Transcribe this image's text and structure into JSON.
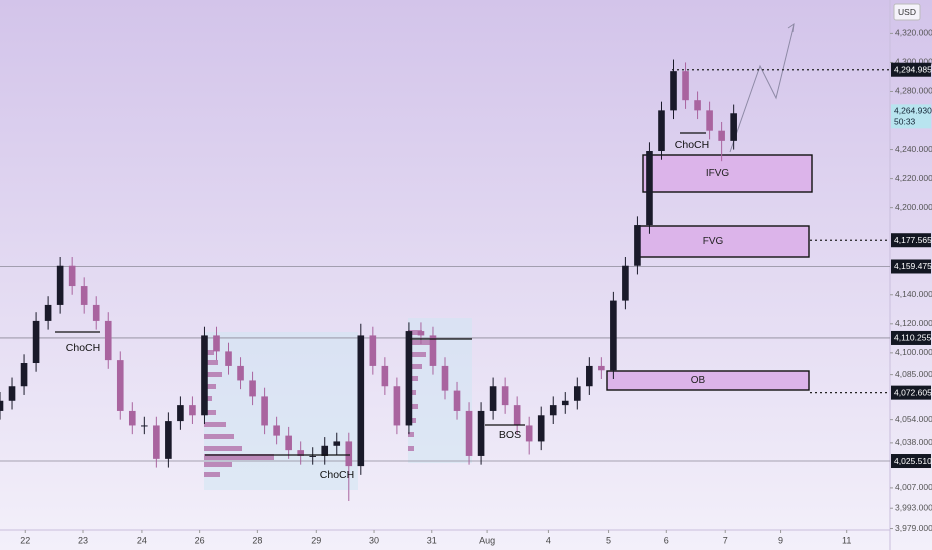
{
  "chart_data": {
    "type": "candlestick",
    "currency": "USD",
    "up_color": "#1a1a2a",
    "down_color": "#a9649f",
    "grid": false,
    "xlim": [
      0,
      74
    ],
    "ylim": [
      3978,
      4343
    ],
    "xticks": [
      {
        "value": 2.1,
        "label": "22"
      },
      {
        "value": 6.9,
        "label": "23"
      },
      {
        "value": 11.8,
        "label": "24"
      },
      {
        "value": 16.6,
        "label": "26"
      },
      {
        "value": 21.4,
        "label": "28"
      },
      {
        "value": 26.3,
        "label": "29"
      },
      {
        "value": 31.1,
        "label": "30"
      },
      {
        "value": 35.9,
        "label": "31"
      },
      {
        "value": 40.5,
        "label": "Aug"
      },
      {
        "value": 45.6,
        "label": "4"
      },
      {
        "value": 50.6,
        "label": "5"
      },
      {
        "value": 55.4,
        "label": "6"
      },
      {
        "value": 60.3,
        "label": "7"
      },
      {
        "value": 64.9,
        "label": "9"
      },
      {
        "value": 70.4,
        "label": "11"
      }
    ],
    "yticks": [
      {
        "value": 4320,
        "label": "4,320.000"
      },
      {
        "value": 4300,
        "label": "4,300.000"
      },
      {
        "value": 4280,
        "label": "4,280.000"
      },
      {
        "value": 4240,
        "label": "4,240.000"
      },
      {
        "value": 4220,
        "label": "4,220.000"
      },
      {
        "value": 4200,
        "label": "4,200.000"
      },
      {
        "value": 4140,
        "label": "4,140.000"
      },
      {
        "value": 4120,
        "label": "4,120.000"
      },
      {
        "value": 4100,
        "label": "4,100.000"
      },
      {
        "value": 4085,
        "label": "4,085.000"
      },
      {
        "value": 4054,
        "label": "4,054.000"
      },
      {
        "value": 4038,
        "label": "4,038.000"
      },
      {
        "value": 4007,
        "label": "4,007.000"
      },
      {
        "value": 3993,
        "label": "3,993.000"
      },
      {
        "value": 3979,
        "label": "3,979.000"
      }
    ],
    "open": [
      4060,
      4067,
      4077,
      4093,
      4122,
      4133,
      4160,
      4146,
      4133,
      4122,
      4095,
      4060,
      4050,
      4050,
      4027,
      4053,
      4064,
      4057,
      4112,
      4101,
      4091,
      4081,
      4070,
      4050,
      4043,
      4033,
      4029,
      4029,
      4036,
      4039,
      4022,
      4112,
      4091,
      4077,
      4050,
      4115,
      4112,
      4091,
      4074,
      4060,
      4029,
      4060,
      4077,
      4064,
      4050,
      4039,
      4057,
      4064,
      4067,
      4077,
      4091,
      4088,
      4136,
      4160,
      4188,
      4239,
      4267,
      4294,
      4274,
      4267,
      4253,
      4246
    ],
    "high": [
      4073,
      4083,
      4099,
      4128,
      4139,
      4166,
      4166,
      4152,
      4139,
      4128,
      4101,
      4066,
      4056,
      4056,
      4059,
      4070,
      4070,
      4118,
      4118,
      4107,
      4097,
      4087,
      4076,
      4056,
      4049,
      4039,
      4035,
      4042,
      4045,
      4045,
      4120,
      4118,
      4097,
      4083,
      4121,
      4121,
      4118,
      4097,
      4080,
      4066,
      4066,
      4083,
      4083,
      4070,
      4056,
      4063,
      4070,
      4073,
      4083,
      4097,
      4097,
      4142,
      4166,
      4194,
      4245,
      4273,
      4302,
      4300,
      4280,
      4273,
      4259,
      4271
    ],
    "low": [
      4054,
      4061,
      4071,
      4087,
      4116,
      4127,
      4140,
      4127,
      4116,
      4089,
      4054,
      4044,
      4044,
      4021,
      4021,
      4047,
      4051,
      4051,
      4095,
      4085,
      4075,
      4064,
      4044,
      4037,
      4027,
      4023,
      4023,
      4023,
      4030,
      3998,
      4016,
      4085,
      4071,
      4044,
      4044,
      4106,
      4085,
      4068,
      4054,
      4023,
      4023,
      4054,
      4058,
      4044,
      4030,
      4033,
      4051,
      4058,
      4061,
      4071,
      4082,
      4082,
      4130,
      4154,
      4182,
      4233,
      4261,
      4268,
      4261,
      4247,
      4232,
      4240
    ],
    "close": [
      4067,
      4077,
      4093,
      4122,
      4133,
      4160,
      4146,
      4133,
      4122,
      4095,
      4060,
      4050,
      4050,
      4027,
      4053,
      4064,
      4057,
      4112,
      4101,
      4091,
      4081,
      4070,
      4050,
      4043,
      4033,
      4029,
      4029,
      4036,
      4039,
      4022,
      4112,
      4091,
      4077,
      4050,
      4115,
      4112,
      4091,
      4074,
      4060,
      4029,
      4060,
      4077,
      4064,
      4050,
      4039,
      4057,
      4064,
      4067,
      4077,
      4091,
      4088,
      4136,
      4160,
      4188,
      4239,
      4267,
      4294,
      4274,
      4267,
      4253,
      4246,
      4265
    ],
    "levels": [
      {
        "value": 4294.985,
        "label": "4,294.985",
        "line": "dotted"
      },
      {
        "value": 4177.565,
        "label": "4,177.565",
        "line": "dotted"
      },
      {
        "value": 4159.475,
        "label": "4,159.475",
        "line": "solid"
      },
      {
        "value": 4110.255,
        "label": "4,110.255",
        "line": "solid"
      },
      {
        "value": 4072.605,
        "label": "4,072.605",
        "line": "dotted"
      },
      {
        "value": 4025.51,
        "label": "4,025.510",
        "line": "solid"
      }
    ],
    "current_price": {
      "value": 4264.93,
      "label": "4,264.930",
      "countdown": "50:33"
    },
    "zones": [
      "IFVG",
      "FVG",
      "OB"
    ],
    "annotations": [
      "ChoCH",
      "ChoCH",
      "ChoCH",
      "BOS"
    ]
  }
}
